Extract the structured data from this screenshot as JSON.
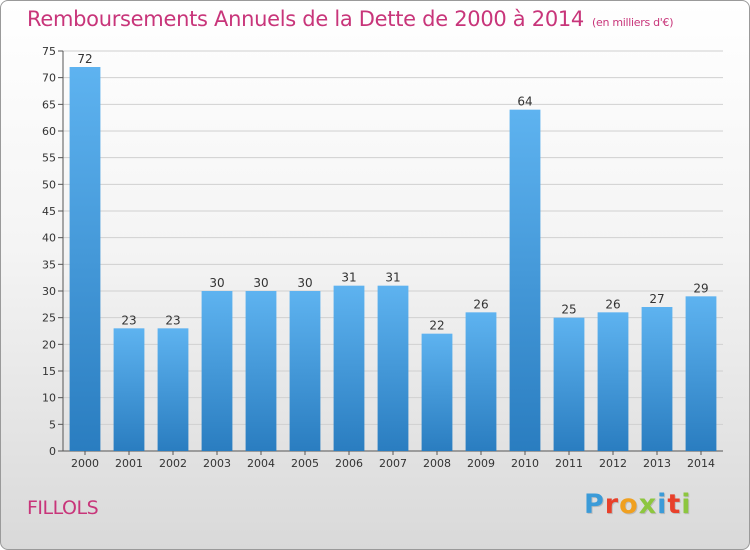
{
  "header": {
    "title": "Remboursements Annuels de la Dette de 2000 à 2014",
    "unit": "(en milliers d'€)"
  },
  "footer": {
    "commune": "FILLOLS",
    "logo_text": "Proxiti",
    "logo_colors": [
      "#3b9bd8",
      "#e8402a",
      "#f0a020",
      "#8dc63f",
      "#3b9bd8",
      "#e8402a",
      "#8dc63f"
    ]
  },
  "colors": {
    "bar_top": "#5eb3f0",
    "bar_bottom": "#2a7dc0",
    "grid": "#d0d0d0"
  },
  "chart_data": {
    "type": "bar",
    "title": "Remboursements Annuels de la Dette de 2000 à 2014",
    "categories": [
      "2000",
      "2001",
      "2002",
      "2003",
      "2004",
      "2005",
      "2006",
      "2007",
      "2008",
      "2009",
      "2010",
      "2011",
      "2012",
      "2013",
      "2014"
    ],
    "values": [
      72,
      23,
      23,
      30,
      30,
      30,
      31,
      31,
      22,
      26,
      64,
      25,
      26,
      27,
      29
    ],
    "ylim": [
      0,
      75
    ],
    "yticks": [
      0,
      5,
      10,
      15,
      20,
      25,
      30,
      35,
      40,
      45,
      50,
      55,
      60,
      65,
      70,
      75
    ],
    "grid": true
  }
}
